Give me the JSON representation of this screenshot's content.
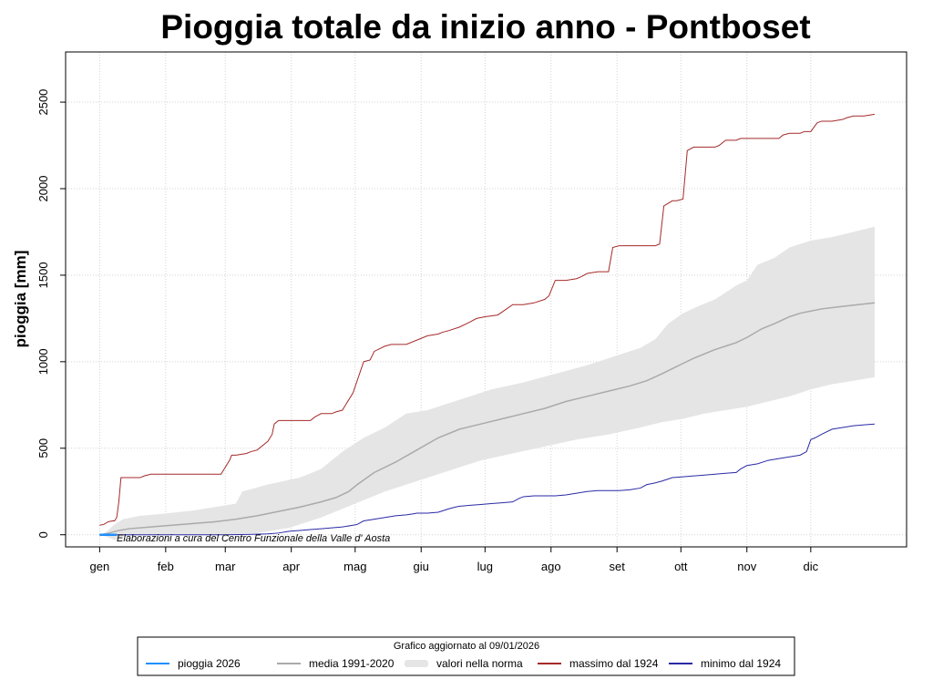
{
  "chart_data": {
    "type": "line",
    "title": "Pioggia totale da inizio anno - Pontboset",
    "xlabel": "",
    "ylabel": "pioggia [mm]",
    "ylim": [
      -70,
      2790
    ],
    "xlim": [
      -15,
      380
    ],
    "grid": true,
    "y_ticks": [
      0,
      500,
      1000,
      1500,
      2000,
      2500
    ],
    "x_ticks": [
      {
        "label": "gen",
        "day": 1
      },
      {
        "label": "feb",
        "day": 32
      },
      {
        "label": "mar",
        "day": 60
      },
      {
        "label": "apr",
        "day": 91
      },
      {
        "label": "mag",
        "day": 121
      },
      {
        "label": "giu",
        "day": 152
      },
      {
        "label": "lug",
        "day": 182
      },
      {
        "label": "ago",
        "day": 213
      },
      {
        "label": "set",
        "day": 244
      },
      {
        "label": "ott",
        "day": 274
      },
      {
        "label": "nov",
        "day": 305
      },
      {
        "label": "dic",
        "day": 335
      }
    ],
    "annotation": "Elaborazioni a cura del Centro Funzionale della Valle d' Aosta",
    "legend": {
      "title": "Grafico aggiornato al 09/01/2026",
      "placement": "bottom",
      "entries": [
        {
          "label": "pioggia 2026",
          "kind": "line",
          "color": "#1e90ff"
        },
        {
          "label": "media 1991-2020",
          "kind": "line",
          "color": "#aaaaaa"
        },
        {
          "label": "valori nella norma",
          "kind": "band",
          "color": "#e5e5e5"
        },
        {
          "label": "massimo dal 1924",
          "kind": "line",
          "color": "#a52a2a"
        },
        {
          "label": "minimo dal 1924",
          "kind": "line",
          "color": "#2a2aa5"
        }
      ]
    },
    "series": [
      {
        "name": "pioggia 2026",
        "color": "#1e90ff",
        "x": [
          1,
          2,
          3,
          4,
          5,
          6,
          7,
          8,
          9
        ],
        "values": [
          0,
          0,
          0,
          0,
          0,
          0,
          0,
          0,
          0
        ]
      },
      {
        "name": "media 1991-2020",
        "color": "#aaaaaa",
        "x": [
          1,
          5,
          10,
          15,
          25,
          35,
          45,
          55,
          65,
          75,
          85,
          95,
          105,
          112,
          118,
          122,
          130,
          140,
          150,
          160,
          170,
          180,
          190,
          200,
          210,
          220,
          230,
          240,
          250,
          258,
          265,
          270,
          275,
          280,
          290,
          295,
          300,
          305,
          312,
          318,
          325,
          330,
          340,
          350,
          365
        ],
        "values": [
          0,
          8,
          25,
          35,
          45,
          55,
          65,
          75,
          90,
          110,
          135,
          160,
          190,
          215,
          250,
          290,
          360,
          420,
          490,
          560,
          610,
          640,
          670,
          700,
          730,
          770,
          800,
          830,
          860,
          890,
          930,
          960,
          990,
          1020,
          1070,
          1090,
          1110,
          1140,
          1190,
          1220,
          1260,
          1280,
          1305,
          1320,
          1340
        ]
      },
      {
        "name": "valori nella norma (superiore)",
        "color": "#e5e5e5",
        "x": [
          1,
          4,
          8,
          12,
          20,
          30,
          45,
          55,
          65,
          68,
          80,
          95,
          105,
          115,
          125,
          135,
          140,
          145,
          155,
          165,
          175,
          185,
          200,
          215,
          230,
          245,
          255,
          262,
          268,
          275,
          282,
          290,
          300,
          305,
          310,
          318,
          325,
          335,
          345,
          355,
          365
        ],
        "values": [
          0,
          15,
          60,
          90,
          110,
          120,
          140,
          160,
          180,
          250,
          290,
          330,
          380,
          480,
          560,
          620,
          660,
          700,
          720,
          760,
          800,
          840,
          880,
          930,
          980,
          1040,
          1080,
          1130,
          1220,
          1280,
          1320,
          1360,
          1440,
          1470,
          1560,
          1600,
          1660,
          1700,
          1720,
          1750,
          1780
        ]
      },
      {
        "name": "valori nella norma (inferiore)",
        "color": "#e5e5e5",
        "x": [
          1,
          4,
          8,
          12,
          20,
          30,
          45,
          60,
          75,
          90,
          105,
          115,
          125,
          135,
          150,
          165,
          180,
          195,
          210,
          225,
          240,
          255,
          265,
          275,
          285,
          295,
          305,
          315,
          325,
          335,
          345,
          355,
          365
        ],
        "values": [
          0,
          -10,
          -30,
          -10,
          0,
          0,
          0,
          0,
          10,
          40,
          100,
          150,
          200,
          250,
          310,
          370,
          430,
          470,
          510,
          550,
          580,
          620,
          650,
          670,
          700,
          720,
          740,
          770,
          800,
          840,
          870,
          890,
          910
        ]
      },
      {
        "name": "massimo dal 1924",
        "color": "#a52a2a",
        "x": [
          1,
          3,
          5,
          7,
          8,
          9,
          10,
          11,
          13,
          15,
          20,
          22,
          25,
          35,
          38,
          42,
          50,
          55,
          58,
          62,
          63,
          65,
          70,
          72,
          75,
          80,
          82,
          83,
          85,
          87,
          90,
          95,
          100,
          102,
          105,
          110,
          112,
          115,
          117,
          120,
          125,
          128,
          130,
          135,
          138,
          140,
          145,
          155,
          160,
          162,
          165,
          170,
          175,
          178,
          182,
          188,
          195,
          198,
          200,
          205,
          210,
          212,
          215,
          220,
          225,
          227,
          230,
          235,
          240,
          242,
          245,
          260,
          262,
          264,
          266,
          270,
          272,
          275,
          277,
          280,
          290,
          292,
          295,
          300,
          302,
          305,
          310,
          318,
          320,
          322,
          325,
          330,
          332,
          335,
          338,
          340,
          345,
          350,
          352,
          355,
          360,
          365
        ],
        "values": [
          55,
          60,
          75,
          80,
          80,
          100,
          190,
          330,
          330,
          330,
          330,
          340,
          350,
          350,
          350,
          350,
          350,
          350,
          350,
          430,
          460,
          460,
          470,
          480,
          490,
          540,
          580,
          640,
          660,
          660,
          660,
          660,
          660,
          680,
          700,
          700,
          710,
          720,
          760,
          820,
          1000,
          1010,
          1060,
          1090,
          1100,
          1100,
          1100,
          1150,
          1160,
          1170,
          1180,
          1200,
          1230,
          1250,
          1260,
          1270,
          1330,
          1330,
          1330,
          1340,
          1360,
          1380,
          1470,
          1470,
          1480,
          1490,
          1510,
          1520,
          1520,
          1660,
          1670,
          1670,
          1670,
          1680,
          1900,
          1930,
          1930,
          1940,
          2220,
          2240,
          2240,
          2250,
          2280,
          2280,
          2290,
          2290,
          2290,
          2290,
          2290,
          2310,
          2320,
          2320,
          2330,
          2330,
          2380,
          2390,
          2390,
          2400,
          2410,
          2420,
          2420,
          2430
        ]
      },
      {
        "name": "minimo dal 1924",
        "color": "#2a2aa5",
        "x": [
          1,
          20,
          40,
          60,
          70,
          80,
          85,
          90,
          95,
          100,
          105,
          110,
          115,
          120,
          122,
          125,
          130,
          135,
          140,
          145,
          148,
          150,
          155,
          160,
          165,
          168,
          170,
          175,
          180,
          185,
          190,
          195,
          198,
          200,
          205,
          210,
          215,
          220,
          225,
          230,
          235,
          240,
          245,
          250,
          255,
          258,
          260,
          262,
          265,
          270,
          275,
          280,
          285,
          290,
          295,
          300,
          302,
          305,
          310,
          315,
          320,
          325,
          330,
          333,
          335,
          337,
          340,
          345,
          350,
          355,
          360,
          365
        ],
        "values": [
          0,
          0,
          0,
          0,
          2,
          5,
          10,
          20,
          25,
          30,
          35,
          40,
          45,
          55,
          60,
          80,
          90,
          100,
          110,
          115,
          120,
          125,
          125,
          130,
          150,
          160,
          165,
          170,
          175,
          180,
          185,
          190,
          210,
          220,
          225,
          225,
          225,
          230,
          240,
          250,
          255,
          255,
          255,
          260,
          270,
          290,
          295,
          300,
          310,
          330,
          335,
          340,
          345,
          350,
          355,
          360,
          380,
          400,
          410,
          430,
          440,
          450,
          460,
          480,
          550,
          560,
          580,
          610,
          620,
          630,
          635,
          640
        ]
      }
    ]
  }
}
